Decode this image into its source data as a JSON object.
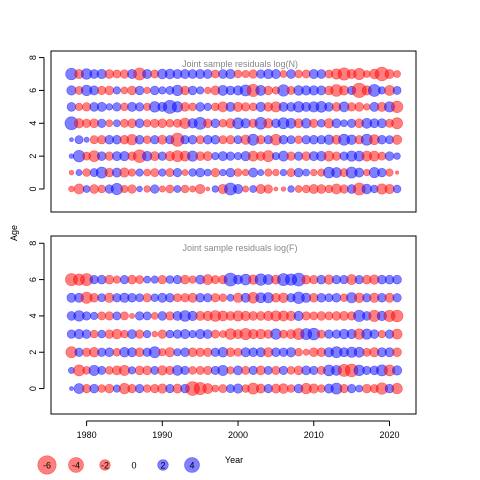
{
  "chart_data": {
    "type": "scatter",
    "subtype": "bubble-residuals",
    "ylabel": "Age",
    "xlabel": "Year",
    "x_ticks": [
      1980,
      1990,
      2000,
      2010,
      2020
    ],
    "y_ticks": [
      0,
      2,
      4,
      6,
      8
    ],
    "xlim": [
      1975.3,
      2023.5
    ],
    "ylim": [
      -1.4,
      8.4
    ],
    "years": [
      1978,
      1979,
      1980,
      1981,
      1982,
      1983,
      1984,
      1985,
      1986,
      1987,
      1988,
      1989,
      1990,
      1991,
      1992,
      1993,
      1994,
      1995,
      1996,
      1997,
      1998,
      1999,
      2000,
      2001,
      2002,
      2003,
      2004,
      2005,
      2006,
      2007,
      2008,
      2009,
      2010,
      2011,
      2012,
      2013,
      2014,
      2015,
      2016,
      2017,
      2018,
      2019,
      2020,
      2021
    ],
    "ages": [
      0,
      1,
      2,
      3,
      4,
      5,
      6,
      7
    ],
    "colors": {
      "positive": "#0000ff",
      "negative": "#ff0000",
      "alpha": 0.5
    },
    "panels": [
      {
        "title": "Joint sample residuals log(N)",
        "residuals": [
          [
            -0.6,
            -1.8,
            0.9,
            -1.4,
            -1.1,
            1.3,
            2.3,
            -1.0,
            -1.3,
            0.6,
            -0.8,
            1.3,
            -0.7,
            -1.2,
            0.9,
            -1.1,
            -0.7,
            -1.6,
            -0.3,
            0.8,
            -1.6,
            2.6,
            1.6,
            -0.7,
            0.9,
            -1.5,
            -1.3,
            -0.3,
            -0.4,
            0.8,
            -0.9,
            -1.1,
            -1.5,
            -1.4,
            -1.1,
            -1.8,
            -1.3,
            1.4,
            -2.6,
            1.7,
            1.1,
            -1.9,
            -1.6,
            1.1
          ],
          [
            -0.4,
            0.7,
            -1.1,
            1.2,
            2.2,
            -1.4,
            1.5,
            -1.6,
            -1.0,
            1.0,
            -0.9,
            -1.2,
            1.0,
            -1.2,
            1.3,
            -0.7,
            1.1,
            1.4,
            0.9,
            -1.3,
            0.8,
            1.4,
            -1.1,
            -0.8,
            1.5,
            0.7,
            -1.0,
            -0.8,
            0.8,
            -1.2,
            1.4,
            0.9,
            -0.8,
            -1.0,
            2.1,
            1.8,
            -1.2,
            2.2,
            1.5,
            -0.8,
            1.9,
            1.4,
            -1.0,
            -0.2
          ],
          [
            0.4,
            2.4,
            -1.2,
            -2.1,
            1.4,
            -1.3,
            1.5,
            1.6,
            -1.3,
            -2.9,
            1.7,
            -1.5,
            1.3,
            -1.6,
            -2.2,
            -1.8,
            1.9,
            -1.4,
            -1.5,
            1.0,
            1.5,
            1.3,
            1.0,
            1.6,
            -1.8,
            -1.4,
            -2.2,
            1.0,
            1.8,
            -1.3,
            1.3,
            -1.4,
            1.5,
            1.7,
            -1.8,
            -1.3,
            1.3,
            1.9,
            1.8,
            -1.8,
            -1.8,
            -1.2,
            1.4,
            0.8
          ],
          [
            0.3,
            1.2,
            0.5,
            -1.2,
            -1.3,
            1.4,
            1.4,
            -1.4,
            -2.0,
            1.4,
            -1.1,
            1.3,
            -1.5,
            1.3,
            -3.1,
            1.3,
            1.4,
            -1.2,
            1.4,
            1.4,
            -1.2,
            -1.3,
            1.2,
            -1.6,
            2.2,
            -1.3,
            1.3,
            -2.1,
            1.4,
            1.2,
            -1.1,
            1.3,
            1.4,
            1.3,
            1.7,
            -1.5,
            2.2,
            1.7,
            -1.3,
            2.2,
            -1.8,
            1.4,
            1.2,
            -1.6
          ],
          [
            3.0,
            -1.6,
            -1.3,
            -1.4,
            1.3,
            -0.9,
            0.9,
            -1.2,
            -1.4,
            1.4,
            -1.0,
            -1.3,
            -1.4,
            -1.1,
            -1.2,
            -2.0,
            1.6,
            2.6,
            -1.4,
            1.4,
            -1.1,
            -1.6,
            2.1,
            1.6,
            -1.3,
            2.5,
            -1.6,
            1.4,
            2.2,
            1.8,
            -1.5,
            1.7,
            -1.3,
            1.1,
            -1.6,
            1.5,
            0.9,
            1.3,
            -1.4,
            1.8,
            1.5,
            1.5,
            -1.2,
            -2.2
          ],
          [
            1.4,
            -1.0,
            -1.3,
            1.4,
            1.5,
            0.8,
            1.3,
            -1.1,
            1.5,
            1.3,
            -1.0,
            2.0,
            1.5,
            3.1,
            2.0,
            -1.4,
            -1.1,
            1.4,
            1.0,
            -1.1,
            -1.8,
            1.5,
            -1.6,
            -1.3,
            -1.1,
            1.6,
            -1.4,
            -1.9,
            1.5,
            1.4,
            2.0,
            1.5,
            1.9,
            2.1,
            1.4,
            -1.4,
            1.8,
            -1.3,
            -1.4,
            -0.8,
            1.5,
            -1.5,
            1.9,
            -2.4
          ],
          [
            1.6,
            -1.2,
            2.0,
            1.5,
            -1.3,
            -1.4,
            1.0,
            -0.9,
            -1.4,
            1.4,
            -0.8,
            1.4,
            1.0,
            1.2,
            2.0,
            -1.4,
            1.4,
            1.0,
            -0.8,
            -1.5,
            1.8,
            1.4,
            1.6,
            2.2,
            -2.7,
            1.8,
            -1.4,
            -1.0,
            2.4,
            -1.2,
            1.7,
            1.6,
            1.6,
            1.5,
            -1.4,
            -2.5,
            -1.6,
            1.3,
            -3.7,
            -1.6,
            2.6,
            1.0,
            -1.8,
            1.2
          ],
          [
            2.4,
            -1.5,
            2.0,
            1.4,
            1.6,
            -1.4,
            -1.2,
            -1.3,
            1.5,
            -2.6,
            1.5,
            -1.2,
            1.7,
            1.7,
            1.5,
            1.5,
            1.4,
            1.5,
            1.4,
            -1.2,
            1.4,
            1.6,
            -1.1,
            -1.0,
            -1.3,
            1.3,
            1.6,
            1.5,
            -0.9,
            1.4,
            -1.1,
            -1.2,
            1.5,
            1.4,
            -1.2,
            -1.9,
            -2.7,
            -1.5,
            -2.3,
            -0.9,
            -1.7,
            -3.3,
            -1.5,
            -0.9
          ]
        ]
      },
      {
        "title": "Joint sample residuals log(F)",
        "residuals": [
          [
            0.3,
            1.8,
            -1.3,
            1.4,
            -1.1,
            -1.4,
            1.0,
            -2.0,
            -1.3,
            1.3,
            -1.1,
            -1.3,
            -1.6,
            1.3,
            -1.5,
            1.4,
            -3.4,
            -2.7,
            -1.8,
            -0.9,
            -1.2,
            1.2,
            1.6,
            -1.1,
            -2.2,
            -1.5,
            1.3,
            -1.5,
            -1.7,
            -1.1,
            1.4,
            -2.0,
            -1.6,
            -1.1,
            1.5,
            2.2,
            -1.3,
            1.3,
            0.9,
            -1.4,
            -1.2,
            -2.4,
            1.4,
            -2.0
          ],
          [
            0.7,
            -2.2,
            -1.1,
            1.9,
            1.2,
            -1.1,
            -1.5,
            -1.9,
            1.0,
            -1.4,
            -1.4,
            1.2,
            -1.6,
            -1.3,
            1.8,
            1.3,
            -1.1,
            -1.2,
            -1.3,
            1.3,
            1.9,
            -1.0,
            1.5,
            -1.2,
            1.3,
            -1.5,
            1.2,
            -1.3,
            1.3,
            -1.1,
            -1.4,
            1.5,
            1.3,
            -1.2,
            2.1,
            1.8,
            -2.6,
            -2.9,
            2.0,
            1.3,
            1.4,
            2.2,
            -2.1,
            1.6
          ],
          [
            -2.2,
            1.3,
            -1.3,
            -1.7,
            1.3,
            1.4,
            -1.1,
            1.7,
            1.5,
            -1.4,
            1.3,
            2.2,
            -1.0,
            -1.6,
            1.0,
            1.4,
            -1.4,
            -1.3,
            -1.3,
            1.3,
            1.7,
            -1.4,
            -1.2,
            1.5,
            1.4,
            1.5,
            -1.6,
            1.4,
            1.3,
            1.6,
            -1.1,
            -0.7,
            -1.4,
            -1.4,
            1.6,
            2.2,
            1.5,
            1.9,
            1.8,
            -1.2,
            -1.6,
            1.5,
            1.5,
            -1.4
          ],
          [
            1.3,
            1.6,
            1.4,
            -1.1,
            1.1,
            -1.3,
            -1.7,
            -1.1,
            1.5,
            -1.3,
            1.0,
            -0.6,
            -1.3,
            1.1,
            1.3,
            1.6,
            1.0,
            1.6,
            1.4,
            -1.2,
            -0.9,
            -2.1,
            -1.5,
            -2.3,
            -1.6,
            -1.7,
            -1.3,
            2.0,
            -1.2,
            -1.5,
            -2.2,
            2.2,
            2.5,
            -1.2,
            1.3,
            1.3,
            1.7,
            1.6,
            -2.0,
            1.9,
            1.4,
            -1.0,
            1.3,
            -1.8
          ],
          [
            1.4,
            2.0,
            1.3,
            1.0,
            -1.2,
            -1.3,
            1.2,
            -1.2,
            -0.5,
            1.3,
            1.2,
            -0.9,
            1.4,
            -1.3,
            1.5,
            2.1,
            1.6,
            -1.5,
            -1.6,
            -2.1,
            -1.8,
            -1.4,
            -1.9,
            -1.6,
            -1.4,
            -1.4,
            -1.6,
            -1.9,
            -1.8,
            -1.6,
            1.6,
            -1.3,
            -1.2,
            -1.4,
            -1.2,
            -1.4,
            -1.5,
            -1.3,
            2.3,
            1.4,
            -2.3,
            1.6,
            -2.3,
            -2.5
          ],
          [
            1.5,
            1.5,
            -2.3,
            -1.4,
            1.2,
            -1.6,
            1.3,
            1.6,
            1.4,
            1.2,
            -1.3,
            1.1,
            1.5,
            1.4,
            -1.2,
            -1.3,
            -1.5,
            1.4,
            1.3,
            -1.3,
            -1.1,
            0.9,
            -1.6,
            1.5,
            -2.1,
            1.8,
            1.9,
            -1.4,
            -1.7,
            1.3,
            2.4,
            1.6,
            -1.4,
            1.4,
            1.2,
            1.4,
            -1.1,
            1.9,
            -1.7,
            1.3,
            -1.6,
            1.4,
            -1.5,
            1.3
          ],
          [
            -2.6,
            -2.3,
            -2.6,
            1.3,
            1.4,
            -1.4,
            -1.0,
            1.3,
            -1.4,
            -1.2,
            0.9,
            1.0,
            -1.3,
            1.1,
            1.3,
            -1.4,
            -1.0,
            1.5,
            -1.8,
            -1.2,
            -1.3,
            3.0,
            1.5,
            2.1,
            -1.6,
            2.4,
            1.8,
            -1.5,
            2.6,
            2.3,
            3.0,
            -1.4,
            -1.3,
            1.4,
            -1.6,
            1.3,
            1.3,
            -1.8,
            1.3,
            -1.4,
            -1.6,
            1.4,
            1.4,
            1.4
          ],
          [
            null,
            null,
            null,
            null,
            null,
            null,
            null,
            null,
            null,
            null,
            null,
            null,
            null,
            null,
            null,
            null,
            null,
            null,
            null,
            null,
            null,
            null,
            null,
            null,
            null,
            null,
            null,
            null,
            null,
            null,
            null,
            null,
            null,
            null,
            null,
            null,
            null,
            null,
            null,
            null,
            null,
            null,
            null,
            null
          ]
        ]
      }
    ],
    "legend": {
      "position": "bottom",
      "values": [
        -6,
        -4,
        -2,
        0,
        2,
        4
      ],
      "labels": [
        "-6",
        "-4",
        "-2",
        "0",
        "2",
        "4"
      ]
    }
  }
}
